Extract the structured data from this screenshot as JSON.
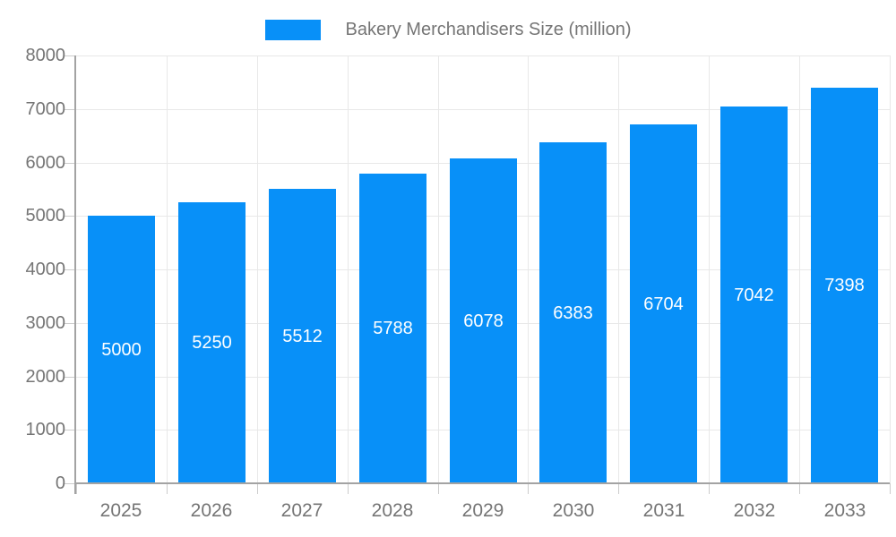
{
  "chart_data": {
    "type": "bar",
    "title": "Bakery Merchandisers Size (million)",
    "categories": [
      "2025",
      "2026",
      "2027",
      "2028",
      "2029",
      "2030",
      "2031",
      "2032",
      "2033"
    ],
    "series": [
      {
        "name": "Bakery Merchandisers Size (million)",
        "values": [
          5000,
          5250,
          5512,
          5788,
          6078,
          6383,
          6704,
          7042,
          7398
        ]
      }
    ],
    "xlabel": "",
    "ylabel": "",
    "ylim": [
      0,
      8000
    ],
    "yticks": [
      0,
      1000,
      2000,
      3000,
      4000,
      5000,
      6000,
      7000,
      8000
    ],
    "grid": true,
    "legend_position": "top",
    "value_labels_inside_bars": true,
    "colors": {
      "bar": "#0890f8",
      "value_label": "#ffffff",
      "axis_text": "#757575",
      "gridline": "#e8e8e8",
      "axis_line": "#a3a3a3",
      "tick": "#cccccc"
    }
  },
  "legend": {
    "label": "Bakery Merchandisers Size (million)"
  }
}
